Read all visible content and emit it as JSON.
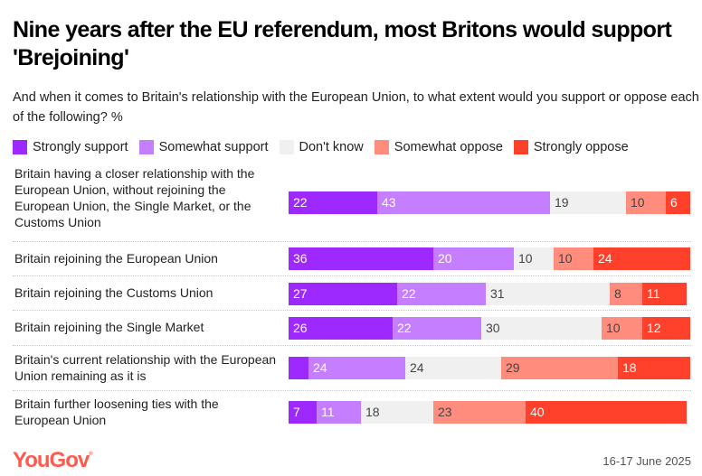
{
  "title": "Nine years after the EU referendum, most Britons would support 'Brejoining'",
  "subtitle": "And when it comes to Britain's relationship with the European Union, to what extent would you support or oppose each of the following? %",
  "footer": {
    "logo": "YouGov",
    "date": "16-17 June 2025"
  },
  "chart_data": {
    "type": "bar",
    "orientation": "horizontal",
    "stacked": true,
    "title": "Nine years after the EU referendum, most Britons would support 'Brejoining'",
    "subtitle": "And when it comes to Britain's relationship with the European Union, to what extent would you support or oppose each of the following? %",
    "legend_position": "top-left",
    "xlim": [
      0,
      100
    ],
    "categories": [
      "Britain having a closer relationship with the European Union, without rejoining the European Union, the Single Market, or the Customs Union",
      "Britain rejoining the European Union",
      "Britain rejoining the Customs Union",
      "Britain rejoining the Single Market",
      "Britain's current relationship with the European Union remaining as it is",
      "Britain further loosening ties with the European Union"
    ],
    "series": [
      {
        "name": "Strongly support",
        "color": "#9D29FF",
        "label_color": "#ffffff",
        "values": [
          22,
          36,
          27,
          26,
          5,
          7
        ],
        "show_labels": [
          true,
          true,
          true,
          true,
          false,
          true
        ]
      },
      {
        "name": "Somewhat support",
        "color": "#C47EFF",
        "label_color": "#ffffff",
        "values": [
          43,
          20,
          22,
          22,
          24,
          11
        ],
        "show_labels": [
          true,
          true,
          true,
          true,
          true,
          true
        ]
      },
      {
        "name": "Don't know",
        "color": "#F0F0F0",
        "label_color": "#444444",
        "values": [
          19,
          10,
          31,
          30,
          24,
          18
        ],
        "show_labels": [
          true,
          true,
          true,
          true,
          true,
          true
        ]
      },
      {
        "name": "Somewhat oppose",
        "color": "#FF8C7D",
        "label_color": "#444444",
        "values": [
          10,
          10,
          8,
          10,
          29,
          23
        ],
        "show_labels": [
          true,
          true,
          true,
          true,
          true,
          true
        ]
      },
      {
        "name": "Strongly oppose",
        "color": "#FF412C",
        "label_color": "#ffffff",
        "values": [
          6,
          24,
          11,
          12,
          18,
          40
        ],
        "show_labels": [
          true,
          true,
          true,
          true,
          true,
          true
        ]
      }
    ]
  }
}
